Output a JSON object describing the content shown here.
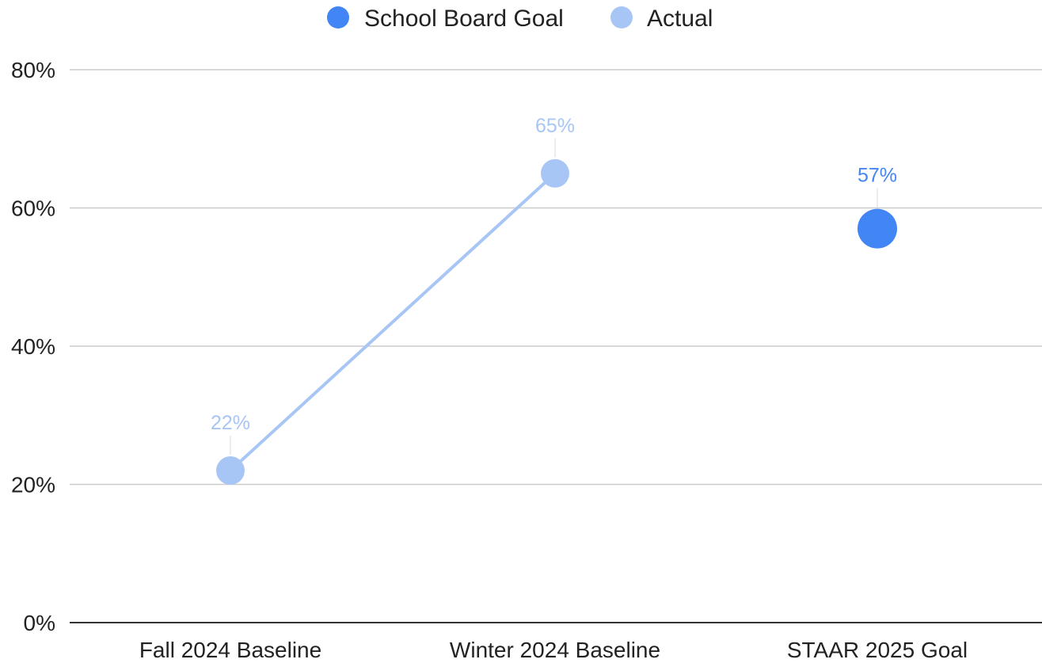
{
  "chart_data": {
    "type": "line",
    "categories": [
      "Fall 2024 Baseline",
      "Winter 2024 Baseline",
      "STAAR 2025 Goal"
    ],
    "series": [
      {
        "name": "School Board Goal",
        "color": "#4285f4",
        "values": [
          null,
          null,
          57
        ],
        "labels": [
          "",
          "",
          "57%"
        ]
      },
      {
        "name": "Actual",
        "color": "#a8c6f5",
        "values": [
          22,
          65,
          null
        ],
        "labels": [
          "22%",
          "65%",
          ""
        ]
      }
    ],
    "ylim": [
      0,
      80
    ],
    "yticks": [
      {
        "value": 0,
        "label": "0%"
      },
      {
        "value": 20,
        "label": "20%"
      },
      {
        "value": 40,
        "label": "40%"
      },
      {
        "value": 60,
        "label": "60%"
      },
      {
        "value": 80,
        "label": "80%"
      }
    ],
    "grid": true,
    "legend_position": "top-center",
    "title": "",
    "xlabel": "",
    "ylabel": ""
  }
}
